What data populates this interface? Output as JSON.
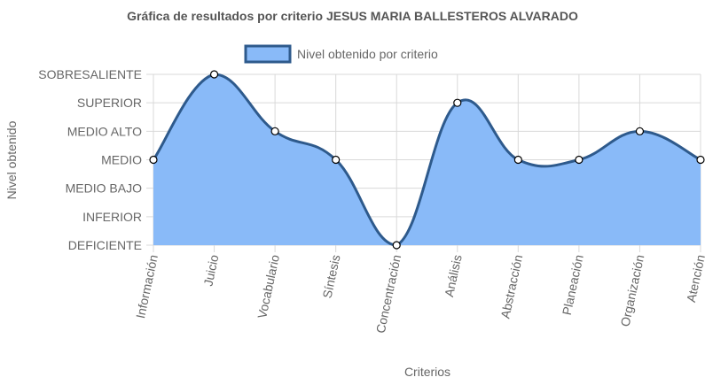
{
  "chart_data": {
    "type": "area",
    "title": "Gráfica de resultados por criterio JESUS MARIA BALLESTEROS ALVARADO",
    "xlabel": "Criterios",
    "ylabel": "Nivel obtenido",
    "y_levels": [
      "DEFICIENTE",
      "INFERIOR",
      "MEDIO BAJO",
      "MEDIO",
      "MEDIO ALTO",
      "SUPERIOR",
      "SOBRESALIENTE"
    ],
    "categories": [
      "Información",
      "Juicio",
      "Vocabulario",
      "Síntesis",
      "Concentración",
      "Análisis",
      "Abstracción",
      "Planeación",
      "Organización",
      "Atención"
    ],
    "series": [
      {
        "name": "Nivel obtenido por criterio",
        "values": [
          "MEDIO",
          "SOBRESALIENTE",
          "MEDIO ALTO",
          "MEDIO",
          "DEFICIENTE",
          "SUPERIOR",
          "MEDIO",
          "MEDIO",
          "MEDIO ALTO",
          "MEDIO"
        ]
      }
    ],
    "legend_position": "top",
    "grid": true,
    "colors": {
      "fill": "#89baf8",
      "stroke": "#2e5a8c",
      "point_fill": "#ffffff",
      "grid": "#d9d9d9"
    }
  }
}
